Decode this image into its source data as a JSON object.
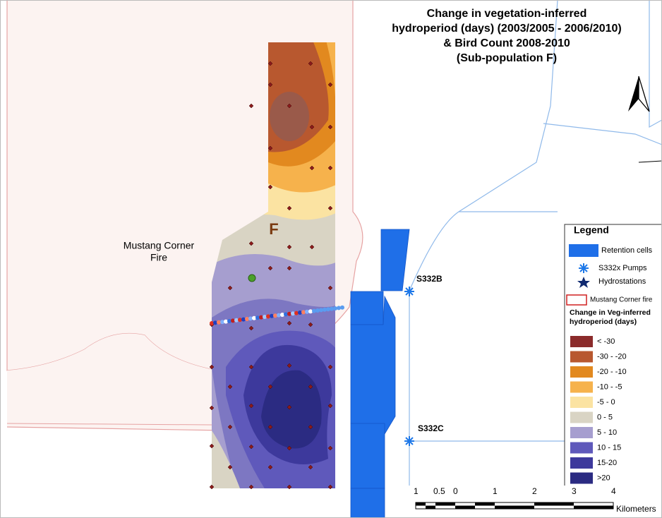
{
  "title": [
    "Change in vegetation-inferred",
    "hydroperiod (days) (2003/2005 - 2006/2010)",
    "& Bird Count 2008-2010",
    "(Sub-population F)"
  ],
  "map_labels": {
    "fire": [
      "Mustang Corner",
      "Fire"
    ],
    "subpopulation": "F",
    "pump_b": "S332B",
    "pump_c": "S332C"
  },
  "legend": {
    "title": "Legend",
    "items": [
      "Retention cells",
      "S332x Pumps",
      "Hydrostations",
      "Mustang Corner fire"
    ],
    "class_title": [
      "Change in Veg-inferred",
      "hydroperiod (days)"
    ],
    "classes": [
      {
        "label": "< -30",
        "color": "#8b2b2b"
      },
      {
        "label": "-30 - -20",
        "color": "#b8582f"
      },
      {
        "label": "-20 - -10",
        "color": "#e2891f"
      },
      {
        "label": "-10 - -5",
        "color": "#f6b24c"
      },
      {
        "label": "-5 - 0",
        "color": "#fbe3a2"
      },
      {
        "label": "0 - 5",
        "color": "#d9d4c4"
      },
      {
        "label": "5 - 10",
        "color": "#a69ecf"
      },
      {
        "label": "10 - 15",
        "color": "#5f59bb"
      },
      {
        "label": "15-20",
        "color": "#3d399c"
      },
      {
        "label": ">20",
        "color": "#2b2b82"
      }
    ]
  },
  "scale_bar": {
    "labels": [
      "1",
      "0.5",
      "0",
      "1",
      "2",
      "3",
      "4"
    ],
    "unit": "Kilometers"
  }
}
